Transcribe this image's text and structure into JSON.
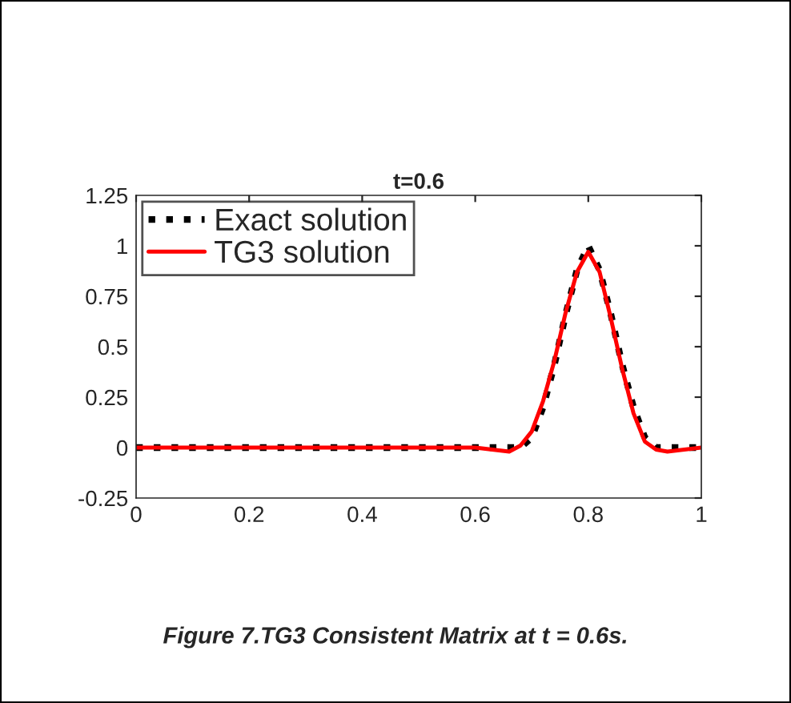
{
  "chart_data": {
    "type": "line",
    "title": "t=0.6",
    "x": [
      0,
      0.2,
      0.4,
      0.6,
      0.66,
      0.68,
      0.7,
      0.72,
      0.74,
      0.76,
      0.78,
      0.8,
      0.82,
      0.84,
      0.86,
      0.88,
      0.9,
      0.92,
      0.94,
      1
    ],
    "series": [
      {
        "name": "Exact solution",
        "color": "#000000",
        "line_style": "dotted",
        "values": [
          0,
          0,
          0,
          0,
          0,
          0,
          0.05,
          0.2,
          0.41,
          0.66,
          0.88,
          1.0,
          0.88,
          0.66,
          0.41,
          0.2,
          0.05,
          0,
          0,
          0
        ]
      },
      {
        "name": "TG3 solution",
        "color": "#ff0000",
        "line_style": "solid",
        "values": [
          0,
          0,
          0,
          0,
          -0.02,
          0.01,
          0.08,
          0.23,
          0.43,
          0.67,
          0.87,
          0.97,
          0.87,
          0.64,
          0.39,
          0.17,
          0.03,
          -0.01,
          -0.02,
          0
        ]
      }
    ],
    "xlim": [
      0,
      1
    ],
    "xticks": [
      0,
      0.2,
      0.4,
      0.6,
      0.8,
      1
    ],
    "ylim": [
      -0.25,
      1.25
    ],
    "yticks": [
      -0.25,
      0,
      0.25,
      0.5,
      0.75,
      1,
      1.25
    ],
    "grid": false,
    "legend": "top left",
    "annotations": [
      "Figure 7.TG3 Consistent Matrix at t = 0.6s."
    ]
  }
}
